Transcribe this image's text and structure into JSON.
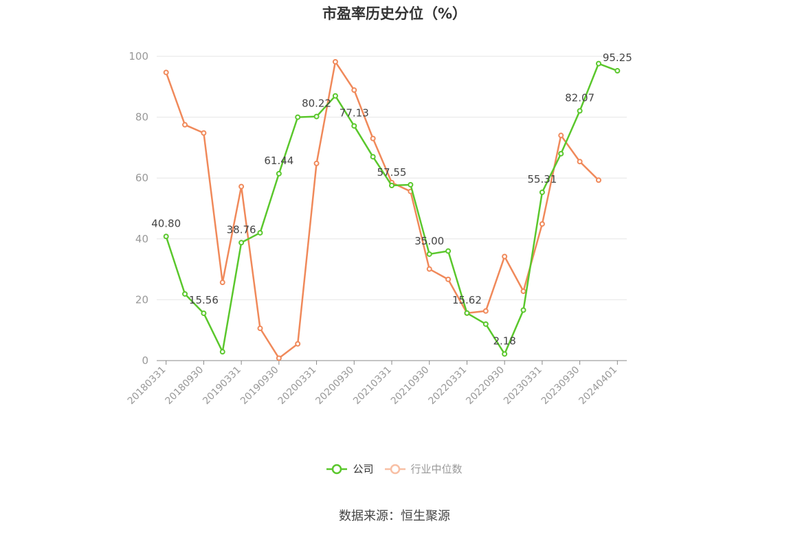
{
  "page": {
    "title": "市盈率历史分位（%）",
    "source": "数据来源：恒生聚源"
  },
  "chart_data": {
    "type": "line",
    "title": "市盈率历史分位（%）",
    "x": [
      "20180331",
      "20180630",
      "20180930",
      "20181231",
      "20190331",
      "20190630",
      "20190930",
      "20191231",
      "20200331",
      "20200630",
      "20200930",
      "20201231",
      "20210331",
      "20210630",
      "20210930",
      "20211231",
      "20220331",
      "20220630",
      "20220930",
      "20221231",
      "20230331",
      "20230630",
      "20230930",
      "20231231",
      "20240401"
    ],
    "x_tick_labels": [
      "20180331",
      "20180930",
      "20190331",
      "20190930",
      "20200331",
      "20200930",
      "20210331",
      "20210930",
      "20220331",
      "20220930",
      "20230331",
      "20230930",
      "20240401"
    ],
    "ylim": [
      0,
      100
    ],
    "y_ticks": [
      "0",
      "20",
      "40",
      "60",
      "80",
      "100"
    ],
    "grid": true,
    "legend_position": "bottom-center",
    "series": [
      {
        "name": "公司",
        "color": "#5ac72c",
        "values": [
          40.8,
          21.9,
          15.56,
          2.9,
          38.76,
          42.0,
          61.44,
          80.0,
          80.22,
          87.0,
          77.13,
          67.0,
          57.55,
          57.8,
          35.0,
          36.0,
          15.62,
          12.0,
          2.18,
          16.6,
          55.31,
          68.0,
          82.07,
          97.6,
          95.25
        ]
      },
      {
        "name": "行业中位数",
        "color": "#f0895a",
        "values": [
          94.7,
          77.5,
          74.8,
          25.7,
          57.2,
          10.6,
          0.8,
          5.5,
          64.8,
          98.2,
          88.9,
          73.0,
          58.5,
          55.6,
          30.1,
          26.7,
          15.6,
          16.3,
          34.2,
          22.8,
          44.9,
          74.0,
          65.4,
          59.3,
          null
        ]
      }
    ],
    "data_labels": [
      {
        "index": 0,
        "text": "40.80"
      },
      {
        "index": 2,
        "text": "15.56"
      },
      {
        "index": 4,
        "text": "38.76"
      },
      {
        "index": 6,
        "text": "61.44"
      },
      {
        "index": 8,
        "text": "80.22"
      },
      {
        "index": 10,
        "text": "77.13"
      },
      {
        "index": 12,
        "text": "57.55"
      },
      {
        "index": 14,
        "text": "35.00"
      },
      {
        "index": 16,
        "text": "15.62"
      },
      {
        "index": 18,
        "text": "2.18"
      },
      {
        "index": 20,
        "text": "55.31"
      },
      {
        "index": 22,
        "text": "82.07"
      },
      {
        "index": 24,
        "text": "95.25"
      }
    ]
  }
}
